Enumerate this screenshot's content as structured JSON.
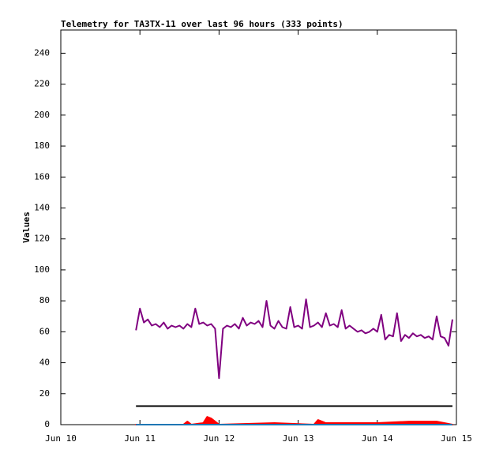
{
  "chart_data": {
    "type": "line",
    "title": "Telemetry for TA3TX-11 over last 96 hours (333 points)",
    "y_label": "Values",
    "xlim": [
      10,
      15
    ],
    "xticks": [
      {
        "value": 10,
        "label": "Jun 10"
      },
      {
        "value": 11,
        "label": "Jun 11"
      },
      {
        "value": 12,
        "label": "Jun 12"
      },
      {
        "value": 13,
        "label": "Jun 13"
      },
      {
        "value": 14,
        "label": "Jun 14"
      },
      {
        "value": 15,
        "label": "Jun 15"
      }
    ],
    "ylim": [
      0,
      255
    ],
    "yticks": [
      0,
      20,
      40,
      60,
      80,
      100,
      120,
      140,
      160,
      180,
      200,
      220,
      240
    ],
    "series": [
      {
        "color": "#800080",
        "x": [
          10.95,
          11.0,
          11.05,
          11.1,
          11.15,
          11.2,
          11.25,
          11.3,
          11.35,
          11.4,
          11.45,
          11.5,
          11.55,
          11.6,
          11.65,
          11.7,
          11.75,
          11.8,
          11.85,
          11.9,
          11.95,
          12.0,
          12.05,
          12.1,
          12.15,
          12.2,
          12.25,
          12.3,
          12.35,
          12.4,
          12.45,
          12.5,
          12.55,
          12.6,
          12.65,
          12.7,
          12.75,
          12.8,
          12.85,
          12.9,
          12.95,
          13.0,
          13.05,
          13.1,
          13.15,
          13.2,
          13.25,
          13.3,
          13.35,
          13.4,
          13.45,
          13.5,
          13.55,
          13.6,
          13.65,
          13.7,
          13.75,
          13.8,
          13.85,
          13.9,
          13.95,
          14.0,
          14.05,
          14.1,
          14.15,
          14.2,
          14.25,
          14.3,
          14.35,
          14.4,
          14.45,
          14.5,
          14.55,
          14.6,
          14.65,
          14.7,
          14.75,
          14.8,
          14.85,
          14.9,
          14.95
        ],
        "values": [
          61,
          75,
          66,
          68,
          64,
          65,
          63,
          66,
          62,
          64,
          63,
          64,
          62,
          65,
          63,
          75,
          65,
          66,
          64,
          65,
          62,
          30,
          62,
          64,
          63,
          65,
          62,
          69,
          64,
          66,
          65,
          67,
          63,
          80,
          64,
          62,
          67,
          63,
          62,
          76,
          63,
          64,
          62,
          81,
          63,
          64,
          66,
          63,
          72,
          64,
          65,
          63,
          74,
          62,
          64,
          62,
          60,
          61,
          59,
          60,
          62,
          60,
          71,
          55,
          58,
          57,
          72,
          54,
          58,
          56,
          59,
          57,
          58,
          56,
          57,
          55,
          70,
          57,
          56,
          51,
          68
        ]
      },
      {
        "color": "#000000",
        "x": [
          10.95,
          14.95
        ],
        "values": [
          12,
          12
        ]
      },
      {
        "color": "#ff0000",
        "fill": true,
        "x": [
          10.95,
          11.55,
          11.6,
          11.65,
          11.8,
          11.85,
          11.9,
          11.95,
          12.0,
          12.7,
          13.2,
          13.25,
          13.3,
          13.35,
          14.0,
          14.4,
          14.75,
          14.95
        ],
        "values": [
          0,
          0,
          2,
          0,
          1,
          5,
          4,
          2,
          0,
          1,
          0,
          3,
          2,
          1,
          1,
          2,
          2,
          0
        ]
      },
      {
        "color": "#1f77b4",
        "x": [
          10.95,
          14.95
        ],
        "values": [
          0,
          0
        ]
      }
    ]
  }
}
